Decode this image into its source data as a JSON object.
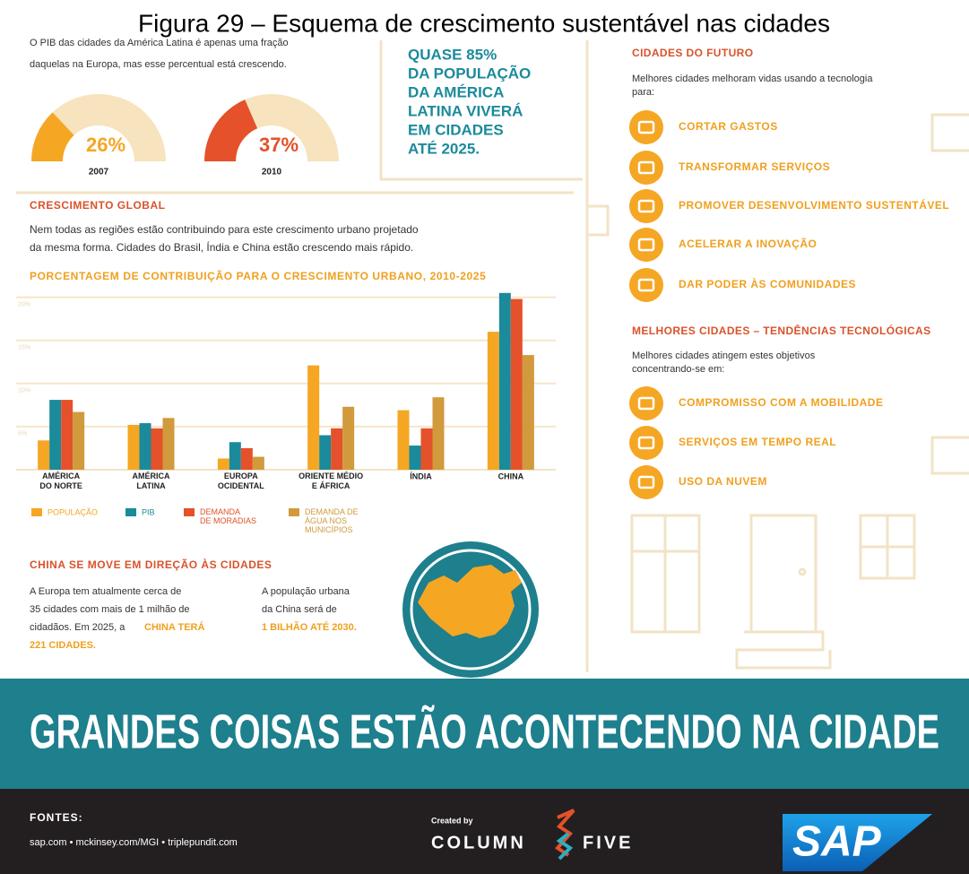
{
  "figure_title": "Figura 29 – Esquema de crescimento sustentável nas cidades",
  "intro": [
    "O PIB das cidades da América Latina é apenas uma fração",
    "daquelas na Europa, mas esse percentual está crescendo."
  ],
  "gauges": [
    {
      "year": "2007",
      "value": 26,
      "label": "26%",
      "color": "#f5a623"
    },
    {
      "year": "2010",
      "value": 37,
      "label": "37%",
      "color": "#e4512a"
    }
  ],
  "highlight": [
    "QUASE 85%",
    "DA POPULAÇÃO",
    "DA AMÉRICA",
    "LATINA VIVERÁ",
    "EM CIDADES",
    "ATÉ 2025."
  ],
  "growth": {
    "heading": "CRESCIMENTO GLOBAL",
    "text": [
      "Nem todas as regiões estão contribuindo para este crescimento urbano projetado",
      "da mesma forma. Cidades do Brasil, Índia e China estão crescendo mais rápido."
    ]
  },
  "chart_data": {
    "type": "bar",
    "title": "PORCENTAGEM DE CONTRIBUIÇÃO PARA O CRESCIMENTO URBANO, 2010-2025",
    "categories": [
      "AMÉRICA\nDO NORTE",
      "AMÉRICA\nLATINA",
      "EUROPA\nOCIDENTAL",
      "ORIENTE MÉDIO\nE ÁFRICA",
      "ÍNDIA",
      "CHINA"
    ],
    "series": [
      {
        "name": "POPULAÇÃO",
        "color": "#f5a623",
        "values": [
          3.4,
          5.2,
          1.3,
          12.1,
          6.9,
          16.0
        ]
      },
      {
        "name": "PIB",
        "color": "#1b8a9b",
        "values": [
          8.1,
          5.4,
          3.2,
          4.0,
          2.8,
          20.5
        ]
      },
      {
        "name": "DEMANDA\nDE MORADIAS",
        "color": "#e4512a",
        "values": [
          8.1,
          4.8,
          2.5,
          4.8,
          4.8,
          19.8
        ]
      },
      {
        "name": "DEMANDA DE\nÁGUA NOS\nMUNICÍPIOS",
        "color": "#d19a3c",
        "values": [
          6.7,
          6.0,
          1.5,
          7.3,
          8.4,
          13.3
        ]
      }
    ],
    "ylim": [
      0,
      21
    ],
    "yticks": [
      {
        "value": 5,
        "label": "5%"
      },
      {
        "value": 10,
        "label": "10%"
      },
      {
        "value": 15,
        "label": "15%"
      },
      {
        "value": 20,
        "label": "20%"
      }
    ],
    "grid": true
  },
  "china": {
    "heading": "CHINA SE MOVE EM DIREÇÃO ÀS CIDADES",
    "left_text": [
      "A Europa tem atualmente cerca de",
      "35 cidades com mais de 1 milhão de",
      "cidadãos. Em 2025, a"
    ],
    "left_highlight": [
      "CHINA TERÁ",
      "221 CIDADES."
    ],
    "right_text": [
      "A população urbana",
      "da China será de"
    ],
    "right_highlight": "1 BILHÃO ATÉ 2030."
  },
  "future": {
    "heading": "CIDADES DO FUTURO",
    "text": [
      "Melhores cidades melhoram vidas usando a tecnologia",
      "para:"
    ],
    "items": [
      "CORTAR GASTOS",
      "TRANSFORMAR SERVIÇOS",
      "PROMOVER DESENVOLVIMENTO SUSTENTÁVEL",
      "ACELERAR A INOVAÇÃO",
      "DAR PODER ÀS COMUNIDADES"
    ]
  },
  "trends": {
    "heading": "MELHORES CIDADES – TENDÊNCIAS TECNOLÓGICAS",
    "text": [
      "Melhores cidades atingem estes objetivos",
      "concentrando-se em:"
    ],
    "items": [
      "COMPROMISSO COM A MOBILIDADE",
      "SERVIÇOS EM TEMPO REAL",
      "USO DA NUVEM"
    ]
  },
  "banner": "GRANDES COISAS ESTÃO ACONTECENDO NA CIDADE",
  "footer": {
    "sources_label": "FONTES:",
    "sources": "sap.com • mckinsey.com/MGI • triplepundit.com",
    "created_by": "Created by",
    "brand": [
      "COLUMN",
      "FIVE"
    ],
    "sponsor": "SAP"
  }
}
